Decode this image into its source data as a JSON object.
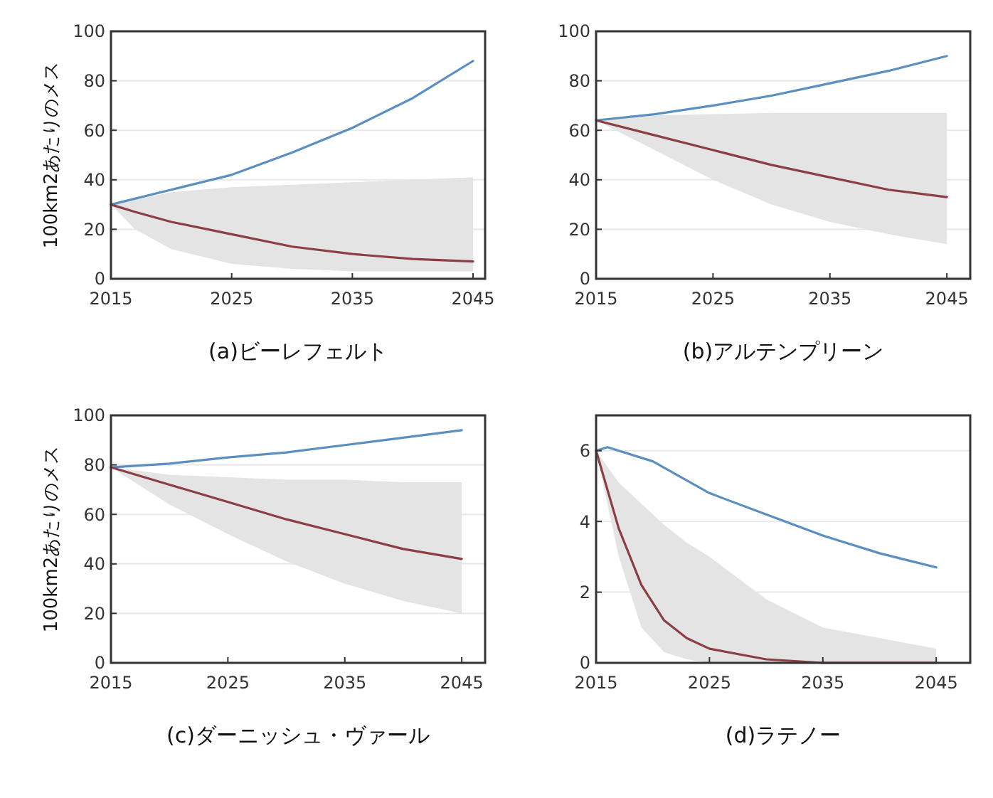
{
  "chart_data": [
    {
      "type": "line",
      "title": "(a)ビーレフェルト",
      "ylabel": "100km2あたりのメス",
      "xlim": [
        2015,
        2046
      ],
      "xticks": [
        2015,
        2025,
        2035,
        2045
      ],
      "ylim": [
        0,
        100
      ],
      "yticks": [
        0,
        20,
        40,
        60,
        80,
        100
      ],
      "grid": "y",
      "series": [
        {
          "color": "#5a8fc0",
          "x": [
            2015,
            2020,
            2025,
            2030,
            2035,
            2040,
            2045
          ],
          "values": [
            30,
            36,
            42,
            51,
            61,
            73,
            88
          ]
        },
        {
          "color": "#8b3f45",
          "x": [
            2015,
            2017,
            2020,
            2025,
            2030,
            2035,
            2040,
            2045
          ],
          "values": [
            30,
            27,
            23,
            18,
            13,
            10,
            8,
            7
          ],
          "lower": [
            30,
            20,
            12,
            6,
            4,
            3,
            3,
            3
          ],
          "upper": [
            30,
            32,
            35,
            37,
            38,
            39,
            40,
            41
          ]
        }
      ]
    },
    {
      "type": "line",
      "title": "(b)アルテンプリーン",
      "xlim": [
        2015,
        2047
      ],
      "xticks": [
        2015,
        2025,
        2035,
        2045
      ],
      "ylim": [
        0,
        100
      ],
      "yticks": [
        0,
        20,
        40,
        60,
        80,
        100
      ],
      "grid": "y",
      "series": [
        {
          "color": "#5a8fc0",
          "x": [
            2015,
            2020,
            2025,
            2030,
            2035,
            2040,
            2045
          ],
          "values": [
            64,
            66.5,
            70,
            74,
            79,
            84,
            90
          ]
        },
        {
          "color": "#8b3f45",
          "x": [
            2015,
            2020,
            2025,
            2030,
            2035,
            2040,
            2045
          ],
          "values": [
            64,
            58,
            52,
            46,
            41,
            36,
            33
          ],
          "lower": [
            64,
            52,
            40,
            30,
            23,
            18,
            14
          ],
          "upper": [
            64,
            66,
            66.5,
            67,
            67,
            67,
            67
          ]
        }
      ]
    },
    {
      "type": "line",
      "title": "(c)ダーニッシュ・ヴァール",
      "ylabel": "100km2あたりのメス",
      "xlim": [
        2015,
        2047
      ],
      "xticks": [
        2015,
        2025,
        2035,
        2045
      ],
      "ylim": [
        0,
        100
      ],
      "yticks": [
        0,
        20,
        40,
        60,
        80,
        100
      ],
      "grid": "y",
      "series": [
        {
          "color": "#5a8fc0",
          "x": [
            2015,
            2020,
            2025,
            2030,
            2035,
            2040,
            2045
          ],
          "values": [
            79,
            80.5,
            83,
            85,
            88,
            91,
            94
          ]
        },
        {
          "color": "#8b3f45",
          "x": [
            2015,
            2020,
            2025,
            2030,
            2035,
            2040,
            2045
          ],
          "values": [
            79,
            72,
            65,
            58,
            52,
            46,
            42
          ],
          "lower": [
            79,
            64,
            52,
            41,
            32,
            25,
            20
          ],
          "upper": [
            79,
            76,
            75,
            74,
            74,
            73,
            73
          ]
        }
      ]
    },
    {
      "type": "line",
      "title": "(d)ラテノー",
      "xlim": [
        2015,
        2048
      ],
      "xticks": [
        2015,
        2025,
        2035,
        2045
      ],
      "ylim": [
        0,
        7
      ],
      "yticks": [
        0,
        2,
        4,
        6
      ],
      "grid": "y",
      "series": [
        {
          "color": "#5a8fc0",
          "x": [
            2015,
            2016,
            2020,
            2025,
            2030,
            2035,
            2040,
            2045
          ],
          "values": [
            6,
            6.1,
            5.7,
            4.8,
            4.2,
            3.6,
            3.1,
            2.7
          ]
        },
        {
          "color": "#8b3f45",
          "x": [
            2015,
            2017,
            2019,
            2021,
            2023,
            2025,
            2030,
            2035,
            2045
          ],
          "values": [
            6,
            3.8,
            2.2,
            1.2,
            0.7,
            0.4,
            0.1,
            0,
            0
          ],
          "lower": [
            6,
            3,
            1,
            0.3,
            0.1,
            0,
            0,
            0,
            0
          ],
          "upper": [
            6,
            5.1,
            4.5,
            3.9,
            3.4,
            3,
            1.8,
            1,
            0.4
          ]
        }
      ]
    }
  ]
}
